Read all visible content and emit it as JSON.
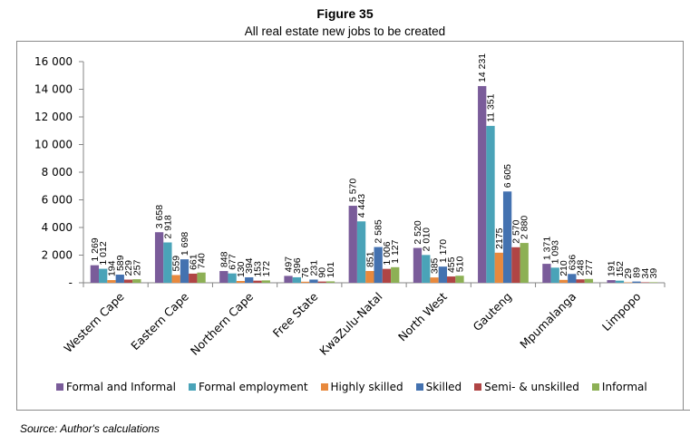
{
  "figure": {
    "title": "Figure 35",
    "subtitle": "All real estate new jobs to be created",
    "source": "Source: Author's calculations"
  },
  "chart_data": {
    "type": "bar",
    "title": "Figure 35",
    "subtitle": "All real estate new jobs to be created",
    "xlabel": "",
    "ylabel": "",
    "ylim": [
      0,
      16000
    ],
    "yticks": [
      0,
      2000,
      4000,
      6000,
      8000,
      10000,
      12000,
      14000,
      16000
    ],
    "ytick_labels": [
      "-",
      "2 000",
      "4 000",
      "6 000",
      "8 000",
      "10 000",
      "12 000",
      "14 000",
      "16 000"
    ],
    "grid": false,
    "legend_position": "bottom",
    "categories": [
      "Western Cape",
      "Eastern Cape",
      "Northern Cape",
      "Free State",
      "KwaZulu-Natal",
      "North West",
      "Gauteng",
      "Mpumalanga",
      "Limpopo"
    ],
    "series": [
      {
        "name": "Formal and Informal",
        "color": "#7A5C9A",
        "values": [
          1269,
          3658,
          848,
          497,
          5570,
          2520,
          14231,
          1371,
          191
        ],
        "labels": [
          "1 269",
          "3 658",
          "848",
          "497",
          "5 570",
          "2 520",
          "14 231",
          "1 371",
          "191"
        ]
      },
      {
        "name": "Formal employment",
        "color": "#4AA3B8",
        "values": [
          1012,
          2918,
          677,
          396,
          4443,
          2010,
          11351,
          1093,
          152
        ],
        "labels": [
          "1 012",
          "2 918",
          "677",
          "396",
          "4 443",
          "2 010",
          "11 351",
          "1 093",
          "152"
        ]
      },
      {
        "name": "Highly skilled",
        "color": "#E8893D",
        "values": [
          194,
          559,
          130,
          76,
          851,
          385,
          2175,
          210,
          29
        ],
        "labels": [
          "194",
          "559",
          "130",
          "76",
          "851",
          "385",
          "2175",
          "210",
          "29"
        ]
      },
      {
        "name": "Skilled",
        "color": "#4472B0",
        "values": [
          589,
          1698,
          394,
          231,
          2585,
          1170,
          6605,
          636,
          89
        ],
        "labels": [
          "589",
          "1 698",
          "394",
          "231",
          "2 585",
          "1 170",
          "6 605",
          "636",
          "89"
        ]
      },
      {
        "name": "Semi- & unskilled",
        "color": "#B04545",
        "values": [
          229,
          661,
          153,
          90,
          1006,
          455,
          2570,
          248,
          34
        ],
        "labels": [
          "229",
          "661",
          "153",
          "90",
          "1 006",
          "455",
          "2 570",
          "248",
          "34"
        ]
      },
      {
        "name": "Informal",
        "color": "#8DB055",
        "values": [
          257,
          740,
          172,
          101,
          1127,
          510,
          2880,
          277,
          39
        ],
        "labels": [
          "257",
          "740",
          "172",
          "101",
          "1 127",
          "510",
          "2 880",
          "277",
          "39"
        ]
      }
    ]
  }
}
